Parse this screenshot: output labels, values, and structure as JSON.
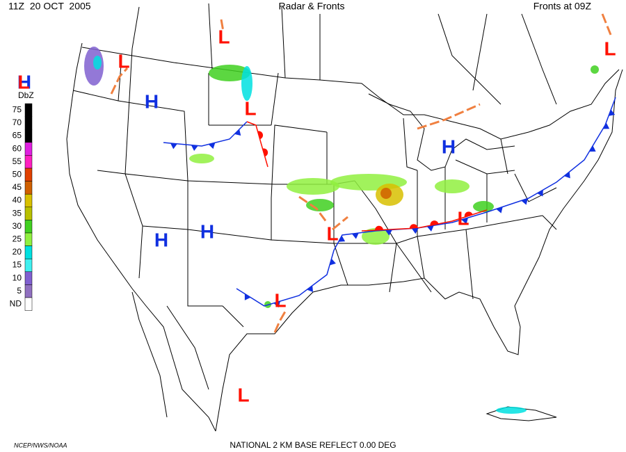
{
  "header": {
    "time": "11Z  20 OCT  2005",
    "title": "Radar & Fronts",
    "fronts_time": "Fronts at 09Z"
  },
  "legend": {
    "title": "DbZ",
    "items": [
      {
        "label": "75",
        "color": "#000000"
      },
      {
        "label": "70",
        "color": "#000000"
      },
      {
        "label": "65",
        "color": "#000000"
      },
      {
        "label": "60",
        "color": "#e020e0"
      },
      {
        "label": "55",
        "color": "#ff20c0"
      },
      {
        "label": "50",
        "color": "#e04000"
      },
      {
        "label": "45",
        "color": "#d06000"
      },
      {
        "label": "40",
        "color": "#d8c000"
      },
      {
        "label": "35",
        "color": "#b8c000"
      },
      {
        "label": "30",
        "color": "#40d020"
      },
      {
        "label": "25",
        "color": "#90f040"
      },
      {
        "label": "20",
        "color": "#00e0e0"
      },
      {
        "label": "15",
        "color": "#40f0f0"
      },
      {
        "label": "10",
        "color": "#8060d0"
      },
      {
        "label": "5",
        "color": "#9070c0"
      },
      {
        "label": "ND",
        "color": "#ffffff"
      }
    ]
  },
  "pressure_centers": [
    {
      "label": "H",
      "color": "#1030e0"
    },
    {
      "label": "L",
      "color": "#ff1000"
    },
    {
      "label": "L",
      "color": "#ff1000"
    },
    {
      "label": "H",
      "color": "#1030e0"
    },
    {
      "label": "L",
      "color": "#ff1000"
    },
    {
      "label": "L",
      "color": "#ff1000"
    },
    {
      "label": "H",
      "color": "#1030e0"
    },
    {
      "label": "H",
      "color": "#1030e0"
    },
    {
      "label": "H",
      "color": "#1030e0"
    },
    {
      "label": "L",
      "color": "#ff1000"
    },
    {
      "label": "L",
      "color": "#ff1000"
    },
    {
      "label": "L",
      "color": "#ff1000"
    },
    {
      "label": "L",
      "color": "#ff1000"
    },
    {
      "label": "L",
      "color": "#ff1000"
    }
  ],
  "footer": {
    "credit": "NCEP/NWS/NOAA",
    "product": "NATIONAL 2 KM BASE REFLECT 0.00 DEG"
  }
}
